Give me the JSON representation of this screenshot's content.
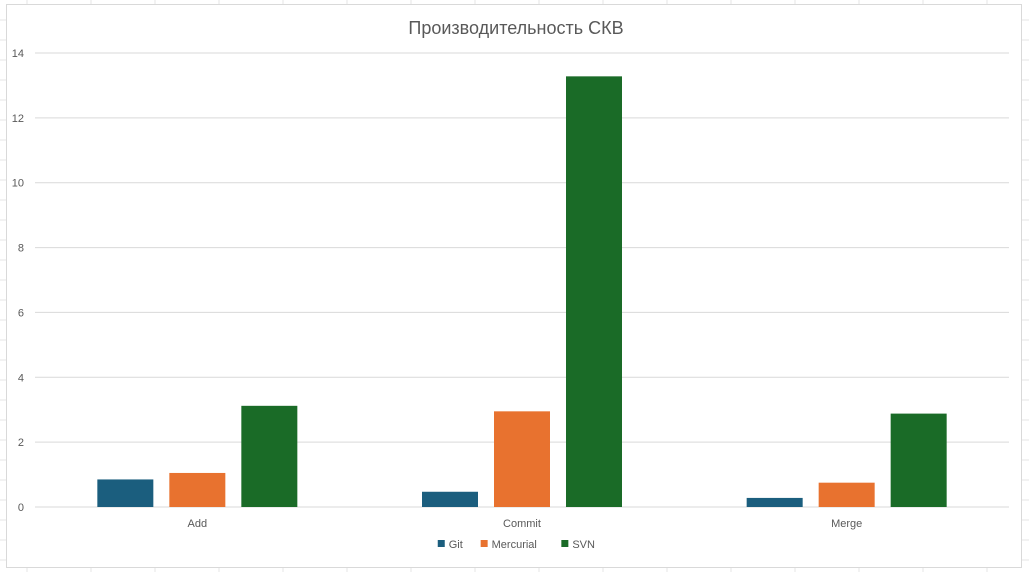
{
  "chart_data": {
    "type": "bar",
    "title": "Производительность СКВ",
    "categories": [
      "Add",
      "Commit",
      "Merge"
    ],
    "series": [
      {
        "name": "Git",
        "values": [
          0.85,
          0.47,
          0.28
        ],
        "color": "#1b5e7e"
      },
      {
        "name": "Mercurial",
        "values": [
          1.05,
          2.95,
          0.75
        ],
        "color": "#e8722f"
      },
      {
        "name": "SVN",
        "values": [
          3.12,
          13.28,
          2.88
        ],
        "color": "#1a6b27"
      }
    ],
    "ylim": [
      0,
      14
    ],
    "yticks": [
      0,
      2,
      4,
      6,
      8,
      10,
      12,
      14
    ],
    "grid": true,
    "legend": "bottom",
    "xlabel": "",
    "ylabel": ""
  }
}
